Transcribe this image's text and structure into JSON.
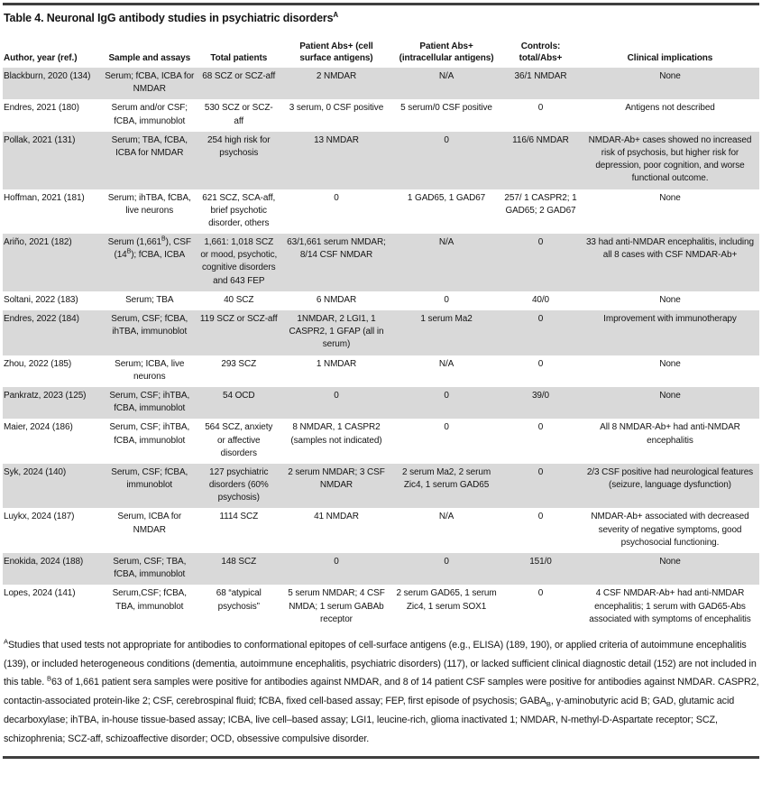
{
  "title": {
    "text": "Table 4. Neuronal IgG antibody studies in psychiatric disorders",
    "sup": "A"
  },
  "colors": {
    "row_stripe": "#d9d9d9",
    "rule": "#3f3f3f",
    "text": "#141414"
  },
  "columns": [
    {
      "key": "author",
      "label": "Author, year (ref.)"
    },
    {
      "key": "sample",
      "label": "Sample and assays"
    },
    {
      "key": "total",
      "label": "Total patients"
    },
    {
      "key": "surface",
      "label": "Patient Abs+ (cell surface antigens)"
    },
    {
      "key": "intracellular",
      "label": "Patient Abs+ (intracellular antigens)"
    },
    {
      "key": "controls",
      "label": "Controls: total/Abs+"
    },
    {
      "key": "clinical",
      "label": "Clinical implications"
    }
  ],
  "rows": [
    {
      "author": "Blackburn, 2020 (134)",
      "sample": "Serum; fCBA, ICBA for NMDAR",
      "total": "68 SCZ or SCZ-aff",
      "surface": "2 NMDAR",
      "intracellular": "N/A",
      "controls": "36/1 NMDAR",
      "clinical": "None"
    },
    {
      "author": "Endres, 2021 (180)",
      "sample": "Serum and/or CSF; fCBA, immunoblot",
      "total": "530 SCZ or SCZ-aff",
      "surface": "3 serum, 0 CSF positive",
      "intracellular": "5 serum/0 CSF positive",
      "controls": "0",
      "clinical": "Antigens not described"
    },
    {
      "author": "Pollak, 2021 (131)",
      "sample": "Serum; TBA, fCBA, ICBA for NMDAR",
      "total": "254 high risk for psychosis",
      "surface": "13 NMDAR",
      "intracellular": "0",
      "controls": "116/6 NMDAR",
      "clinical": "NMDAR-Ab+ cases showed no increased risk of psychosis, but higher risk for depression, poor cognition, and worse functional outcome."
    },
    {
      "author": "Hoffman, 2021 (181)",
      "sample": "Serum; ihTBA, fCBA, live neurons",
      "total": "621 SCZ, SCA-aff, brief psychotic disorder, others",
      "surface": "0",
      "intracellular": "1 GAD65, 1 GAD67",
      "controls": "257/ 1 CASPR2; 1 GAD65; 2 GAD67",
      "clinical": "None"
    },
    {
      "author": "Ariño, 2021 (182)",
      "sample": "Serum (1,661<sup>B</sup>), CSF (14<sup>B</sup>); fCBA, ICBA",
      "total": "1,661: 1,018 SCZ or mood, psychotic, cognitive disorders and 643 FEP",
      "surface": "63/1,661 serum NMDAR; 8/14 CSF NMDAR",
      "intracellular": "N/A",
      "controls": "0",
      "clinical": "33 had anti-NMDAR encephalitis, including all 8 cases with CSF NMDAR-Ab+"
    },
    {
      "author": "Soltani, 2022 (183)",
      "sample": "Serum; TBA",
      "total": "40 SCZ",
      "surface": "6 NMDAR",
      "intracellular": "0",
      "controls": "40/0",
      "clinical": "None"
    },
    {
      "author": "Endres, 2022 (184)",
      "sample": "Serum, CSF; fCBA, ihTBA, immunoblot",
      "total": "119 SCZ or SCZ-aff",
      "surface": "1NMDAR, 2 LGI1, 1 CASPR2, 1 GFAP (all in serum)",
      "intracellular": "1 serum Ma2",
      "controls": "0",
      "clinical": "Improvement with immunotherapy"
    },
    {
      "author": "Zhou, 2022 (185)",
      "sample": "Serum; ICBA, live neurons",
      "total": "293 SCZ",
      "surface": "1 NMDAR",
      "intracellular": "N/A",
      "controls": "0",
      "clinical": "None"
    },
    {
      "author": "Pankratz, 2023 (125)",
      "sample": "Serum, CSF; ihTBA, fCBA, immunoblot",
      "total": "54 OCD",
      "surface": "0",
      "intracellular": "0",
      "controls": "39/0",
      "clinical": "None"
    },
    {
      "author": "Maier, 2024 (186)",
      "sample": "Serum, CSF; ihTBA, fCBA, immunoblot",
      "total": "564 SCZ, anxiety or affective disorders",
      "surface": "8 NMDAR, 1 CASPR2 (samples not indicated)",
      "intracellular": "0",
      "controls": "0",
      "clinical": "All 8 NMDAR-Ab+ had anti-NMDAR encephalitis"
    },
    {
      "author": "Syk, 2024 (140)",
      "sample": "Serum, CSF; fCBA, immunoblot",
      "total": "127 psychiatric disorders (60% psychosis)",
      "surface": "2 serum NMDAR; 3 CSF NMDAR",
      "intracellular": "2 serum Ma2, 2 serum Zic4, 1 serum GAD65",
      "controls": "0",
      "clinical": "2/3 CSF positive had neurological features (seizure, language dysfunction)"
    },
    {
      "author": "Luykx, 2024 (187)",
      "sample": "Serum, ICBA for NMDAR",
      "total": "1114 SCZ",
      "surface": "41 NMDAR",
      "intracellular": "N/A",
      "controls": "0",
      "clinical": "NMDAR-Ab+ associated with decreased severity of negative symptoms, good psychosocial functioning."
    },
    {
      "author": "Enokida, 2024 (188)",
      "sample": "Serum, CSF; TBA, fCBA, immunoblot",
      "total": "148 SCZ",
      "surface": "0",
      "intracellular": "0",
      "controls": "151/0",
      "clinical": "None"
    },
    {
      "author": "Lopes, 2024 (141)",
      "sample": "Serum,CSF; fCBA, TBA, immunoblot",
      "total": "68 “atypical psychosis”",
      "surface": "5 serum NMDAR; 4 CSF NMDA; 1 serum GABAb receptor",
      "intracellular": "2 serum GAD65, 1 serum Zic4, 1 serum SOX1",
      "controls": "0",
      "clinical": "4 CSF NMDAR-Ab+ had anti-NMDAR encephalitis; 1 serum with GAD65-Abs associated with symptoms of encephalitis"
    }
  ],
  "footnote": "<sup>A</sup>Studies that used tests not appropriate for antibodies to conformational epitopes of cell-surface antigens (e.g., ELISA) (189, 190), or applied criteria of autoimmune encephalitis (139), or included heterogeneous conditions (dementia, autoimmune encephalitis, psychiatric disorders) (117), or lacked sufficient clinical diagnostic detail (152) are not included in this table. <sup>B</sup>63 of 1,661 patient sera samples were positive for antibodies against NMDAR, and 8 of 14 patient CSF samples were positive for antibodies against NMDAR. CASPR2, contactin-associated protein-like 2; CSF, cerebrospinal fluid; fCBA, fixed cell-based assay; FEP, first episode of psychosis; GABA<sub>B</sub>, γ-aminobutyric acid B; GAD, glutamic acid decarboxylase; ihTBA, in-house tissue-based assay; ICBA, live cell–based assay; LGI1, leucine-rich, glioma inactivated 1; NMDAR, N-methyl-D-Aspartate receptor; SCZ, schizophrenia; SCZ-aff, schizoaffective disorder; OCD, obsessive compulsive disorder."
}
